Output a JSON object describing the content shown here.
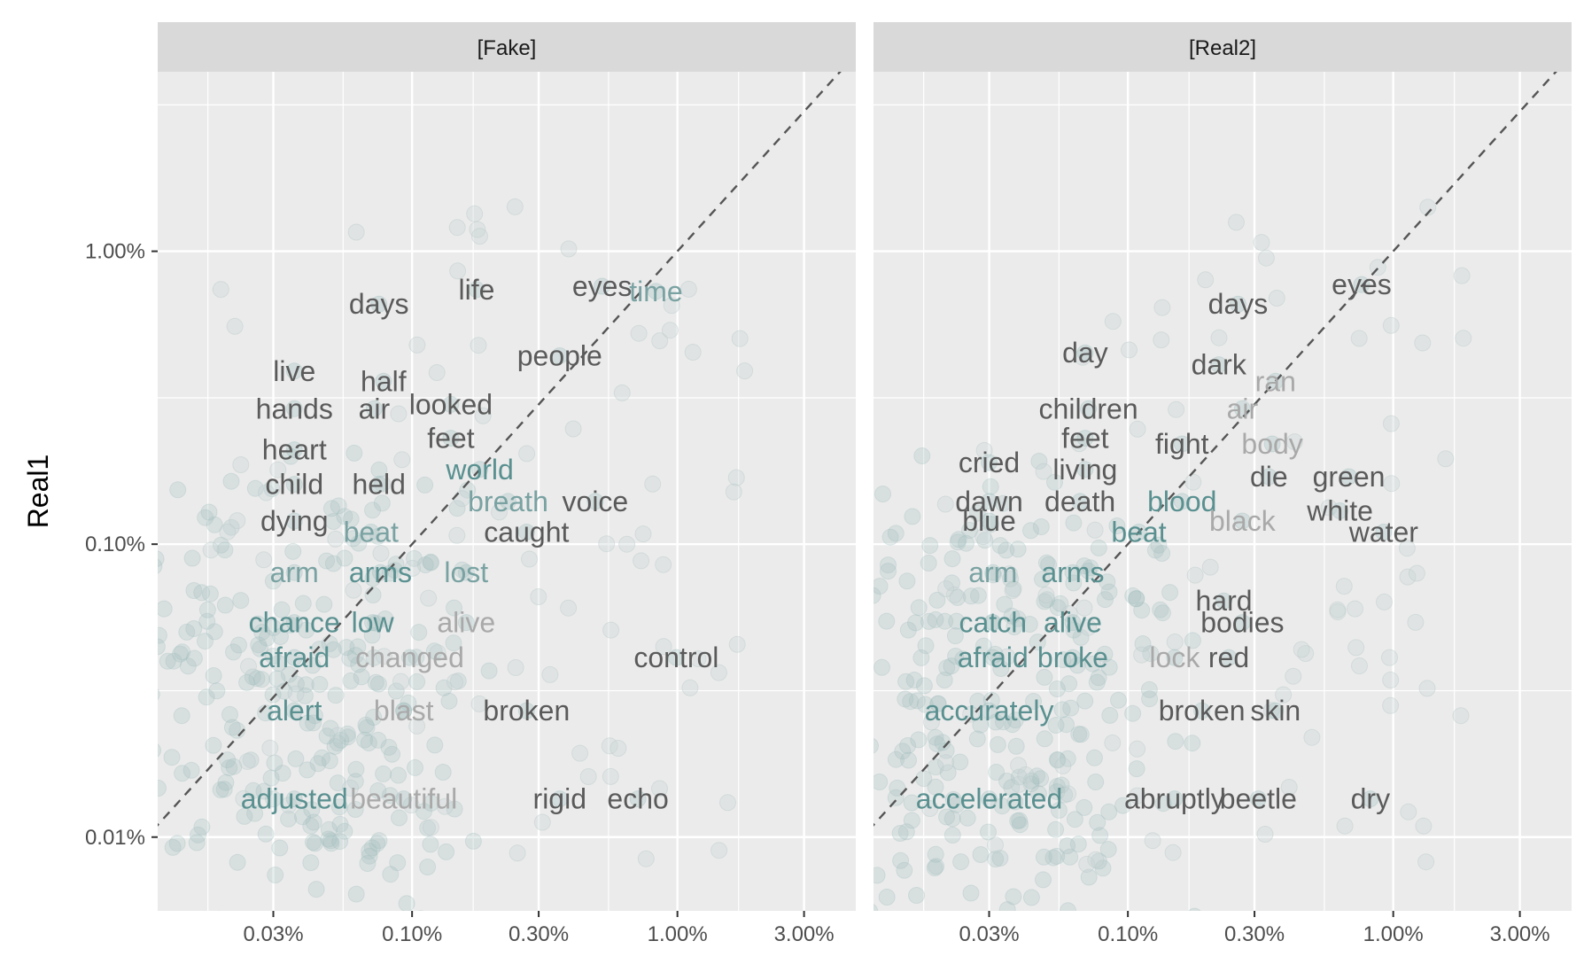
{
  "chart_data": {
    "type": "scatter",
    "ylabel": "Real1",
    "xlabel": "",
    "x_scale": "log10",
    "y_scale": "log10",
    "xlim": [
      0.00011,
      0.047
    ],
    "ylim": [
      5.6e-05,
      0.041
    ],
    "x_ticks": [
      {
        "value": 0.0003,
        "label": "0.03%"
      },
      {
        "value": 0.001,
        "label": "0.10%"
      },
      {
        "value": 0.003,
        "label": "0.30%"
      },
      {
        "value": 0.01,
        "label": "1.00%"
      },
      {
        "value": 0.03,
        "label": "3.00%"
      }
    ],
    "y_ticks": [
      {
        "value": 0.0001,
        "label": "0.01%"
      },
      {
        "value": 0.001,
        "label": "0.10%"
      },
      {
        "value": 0.01,
        "label": "1.00%"
      }
    ],
    "grid": true,
    "reference_line": "y = x",
    "colors": {
      "panel_bg": "#ebebeb",
      "strip_bg": "#d9d9d9",
      "grid": "#ffffff",
      "point": "#9fbcbc",
      "word_dark": "#5a5a5a",
      "word_teal": "#5a9090",
      "word_light": "#a9a9a9",
      "word_mid": "#7aa2a2"
    },
    "panels": [
      {
        "name": "[Fake]",
        "words": [
          {
            "text": "life",
            "x": 0.00175,
            "y": 0.0074,
            "shade": "dark"
          },
          {
            "text": "eyes",
            "x": 0.0052,
            "y": 0.0076,
            "shade": "dark"
          },
          {
            "text": "time",
            "x": 0.0083,
            "y": 0.0073,
            "shade": "mid"
          },
          {
            "text": "days",
            "x": 0.00075,
            "y": 0.0066,
            "shade": "dark"
          },
          {
            "text": "people",
            "x": 0.0036,
            "y": 0.0044,
            "shade": "dark"
          },
          {
            "text": "live",
            "x": 0.00036,
            "y": 0.0039,
            "shade": "dark"
          },
          {
            "text": "half",
            "x": 0.00078,
            "y": 0.0036,
            "shade": "dark"
          },
          {
            "text": "hands",
            "x": 0.00036,
            "y": 0.0029,
            "shade": "dark"
          },
          {
            "text": "air",
            "x": 0.00072,
            "y": 0.0029,
            "shade": "dark"
          },
          {
            "text": "looked",
            "x": 0.0014,
            "y": 0.003,
            "shade": "dark"
          },
          {
            "text": "feet",
            "x": 0.0014,
            "y": 0.0023,
            "shade": "dark"
          },
          {
            "text": "heart",
            "x": 0.00036,
            "y": 0.0021,
            "shade": "dark"
          },
          {
            "text": "world",
            "x": 0.0018,
            "y": 0.0018,
            "shade": "teal"
          },
          {
            "text": "child",
            "x": 0.00036,
            "y": 0.0016,
            "shade": "dark"
          },
          {
            "text": "held",
            "x": 0.00075,
            "y": 0.0016,
            "shade": "dark"
          },
          {
            "text": "breath",
            "x": 0.0023,
            "y": 0.0014,
            "shade": "mid"
          },
          {
            "text": "voice",
            "x": 0.0049,
            "y": 0.0014,
            "shade": "dark"
          },
          {
            "text": "dying",
            "x": 0.00036,
            "y": 0.0012,
            "shade": "dark"
          },
          {
            "text": "beat",
            "x": 0.0007,
            "y": 0.0011,
            "shade": "mid"
          },
          {
            "text": "caught",
            "x": 0.0027,
            "y": 0.0011,
            "shade": "dark"
          },
          {
            "text": "arm",
            "x": 0.00036,
            "y": 0.0008,
            "shade": "mid"
          },
          {
            "text": "arms",
            "x": 0.00076,
            "y": 0.0008,
            "shade": "teal"
          },
          {
            "text": "lost",
            "x": 0.0016,
            "y": 0.0008,
            "shade": "mid"
          },
          {
            "text": "chance",
            "x": 0.00036,
            "y": 0.00054,
            "shade": "teal"
          },
          {
            "text": "low",
            "x": 0.00071,
            "y": 0.00054,
            "shade": "teal"
          },
          {
            "text": "alive",
            "x": 0.0016,
            "y": 0.00054,
            "shade": "light"
          },
          {
            "text": "afraid",
            "x": 0.00036,
            "y": 0.00041,
            "shade": "teal"
          },
          {
            "text": "changed",
            "x": 0.00098,
            "y": 0.00041,
            "shade": "light"
          },
          {
            "text": "control",
            "x": 0.0099,
            "y": 0.00041,
            "shade": "dark"
          },
          {
            "text": "alert",
            "x": 0.00036,
            "y": 0.00027,
            "shade": "teal"
          },
          {
            "text": "blast",
            "x": 0.00093,
            "y": 0.00027,
            "shade": "light"
          },
          {
            "text": "broken",
            "x": 0.0027,
            "y": 0.00027,
            "shade": "dark"
          },
          {
            "text": "adjusted",
            "x": 0.00036,
            "y": 0.000135,
            "shade": "teal"
          },
          {
            "text": "beautiful",
            "x": 0.00093,
            "y": 0.000135,
            "shade": "light"
          },
          {
            "text": "rigid",
            "x": 0.0036,
            "y": 0.000135,
            "shade": "dark"
          },
          {
            "text": "echo",
            "x": 0.0071,
            "y": 0.000135,
            "shade": "dark"
          }
        ]
      },
      {
        "name": "[Real2]",
        "words": [
          {
            "text": "eyes",
            "x": 0.0076,
            "y": 0.0077,
            "shade": "dark"
          },
          {
            "text": "days",
            "x": 0.0026,
            "y": 0.0066,
            "shade": "dark"
          },
          {
            "text": "day",
            "x": 0.00069,
            "y": 0.0045,
            "shade": "dark"
          },
          {
            "text": "dark",
            "x": 0.0022,
            "y": 0.0041,
            "shade": "dark"
          },
          {
            "text": "ran",
            "x": 0.0036,
            "y": 0.0036,
            "shade": "light"
          },
          {
            "text": "children",
            "x": 0.00071,
            "y": 0.0029,
            "shade": "dark"
          },
          {
            "text": "air",
            "x": 0.0027,
            "y": 0.0029,
            "shade": "light"
          },
          {
            "text": "feet",
            "x": 0.00069,
            "y": 0.0023,
            "shade": "dark"
          },
          {
            "text": "fight",
            "x": 0.0016,
            "y": 0.0022,
            "shade": "dark"
          },
          {
            "text": "body",
            "x": 0.0035,
            "y": 0.0022,
            "shade": "light"
          },
          {
            "text": "cried",
            "x": 0.0003,
            "y": 0.0019,
            "shade": "dark"
          },
          {
            "text": "living",
            "x": 0.00069,
            "y": 0.0018,
            "shade": "dark"
          },
          {
            "text": "die",
            "x": 0.0034,
            "y": 0.0017,
            "shade": "dark"
          },
          {
            "text": "green",
            "x": 0.0068,
            "y": 0.0017,
            "shade": "dark"
          },
          {
            "text": "dawn",
            "x": 0.0003,
            "y": 0.0014,
            "shade": "dark"
          },
          {
            "text": "death",
            "x": 0.00066,
            "y": 0.0014,
            "shade": "dark"
          },
          {
            "text": "blood",
            "x": 0.0016,
            "y": 0.0014,
            "shade": "teal"
          },
          {
            "text": "white",
            "x": 0.0063,
            "y": 0.0013,
            "shade": "dark"
          },
          {
            "text": "blue",
            "x": 0.0003,
            "y": 0.0012,
            "shade": "dark"
          },
          {
            "text": "black",
            "x": 0.0027,
            "y": 0.0012,
            "shade": "light"
          },
          {
            "text": "beat",
            "x": 0.0011,
            "y": 0.0011,
            "shade": "teal"
          },
          {
            "text": "water",
            "x": 0.0092,
            "y": 0.0011,
            "shade": "dark"
          },
          {
            "text": "arm",
            "x": 0.00031,
            "y": 0.0008,
            "shade": "mid"
          },
          {
            "text": "arms",
            "x": 0.00062,
            "y": 0.0008,
            "shade": "teal"
          },
          {
            "text": "hard",
            "x": 0.0023,
            "y": 0.00064,
            "shade": "dark"
          },
          {
            "text": "catch",
            "x": 0.00031,
            "y": 0.00054,
            "shade": "teal"
          },
          {
            "text": "alive",
            "x": 0.00062,
            "y": 0.00054,
            "shade": "teal"
          },
          {
            "text": "bodies",
            "x": 0.0027,
            "y": 0.00054,
            "shade": "dark"
          },
          {
            "text": "afraid",
            "x": 0.00031,
            "y": 0.00041,
            "shade": "teal"
          },
          {
            "text": "broke",
            "x": 0.00062,
            "y": 0.00041,
            "shade": "teal"
          },
          {
            "text": "lock",
            "x": 0.0015,
            "y": 0.00041,
            "shade": "light"
          },
          {
            "text": "red",
            "x": 0.0024,
            "y": 0.00041,
            "shade": "dark"
          },
          {
            "text": "accurately",
            "x": 0.0003,
            "y": 0.00027,
            "shade": "teal"
          },
          {
            "text": "broken",
            "x": 0.0019,
            "y": 0.00027,
            "shade": "dark"
          },
          {
            "text": "skin",
            "x": 0.0036,
            "y": 0.00027,
            "shade": "dark"
          },
          {
            "text": "accelerated",
            "x": 0.0003,
            "y": 0.000135,
            "shade": "teal"
          },
          {
            "text": "abruptly",
            "x": 0.0015,
            "y": 0.000135,
            "shade": "dark"
          },
          {
            "text": "beetle",
            "x": 0.0031,
            "y": 0.000135,
            "shade": "dark"
          },
          {
            "text": "dry",
            "x": 0.0082,
            "y": 0.000135,
            "shade": "dark"
          }
        ]
      }
    ]
  }
}
